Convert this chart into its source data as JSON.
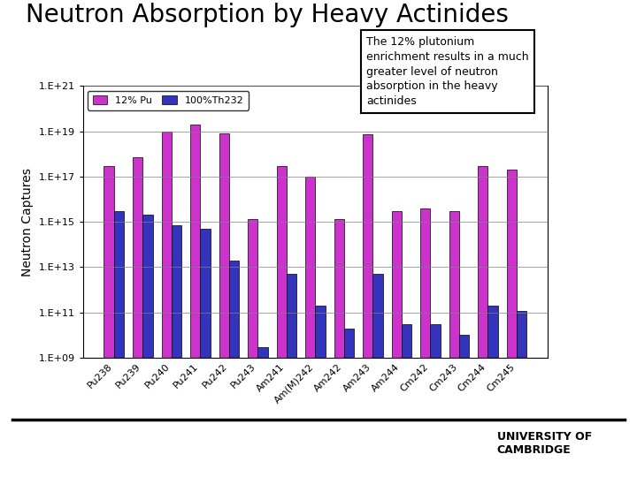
{
  "title": "Neutron Absorption by Heavy Actinides",
  "ylabel": "Neutron Captures",
  "categories": [
    "Pu238",
    "Pu239",
    "Pu240",
    "Pu241",
    "Pu242",
    "Pu243",
    "Am241",
    "Am(M)242",
    "Am242",
    "Am243",
    "Am244",
    "Cm242",
    "Cm243",
    "Cm244",
    "Cm245"
  ],
  "pu_values": [
    3e+17,
    7e+17,
    1e+19,
    2e+19,
    8e+18,
    1300000000000000.0,
    3e+17,
    1e+17,
    1300000000000000.0,
    7e+18,
    3000000000000000.0,
    4000000000000000.0,
    3000000000000000.0,
    3e+17,
    2e+17
  ],
  "th_values": [
    3000000000000000.0,
    2000000000000000.0,
    700000000000000.0,
    500000000000000.0,
    20000000000000.0,
    3000000000.0,
    5000000000000.0,
    200000000000.0,
    20000000000.0,
    5000000000000.0,
    30000000000.0,
    30000000000.0,
    10000000000.0,
    200000000000.0,
    120000000000.0
  ],
  "pu_color": "#CC33CC",
  "th_color": "#3333BB",
  "pu_label": "12% Pu",
  "th_label": "100%Th232",
  "ylim_log": [
    1000000000.0,
    1e+21
  ],
  "yticks": [
    1000000000.0,
    100000000000.0,
    10000000000000.0,
    1000000000000000.0,
    1e+17,
    1e+19,
    1e+21
  ],
  "ytick_labels": [
    "1.E+09",
    "1.E+11",
    "1.E+13",
    "1.E+15",
    "1.E+17",
    "1.E+19",
    "1.E+21"
  ],
  "annotation_text": "The 12% plutonium\nenrichment results in a much\ngreater level of neutron\nabsorption in the heavy\nactinides",
  "bar_width": 0.35,
  "background_color": "#ffffff",
  "title_fontsize": 20,
  "label_fontsize": 10,
  "tick_fontsize": 8,
  "annot_fontsize": 9
}
